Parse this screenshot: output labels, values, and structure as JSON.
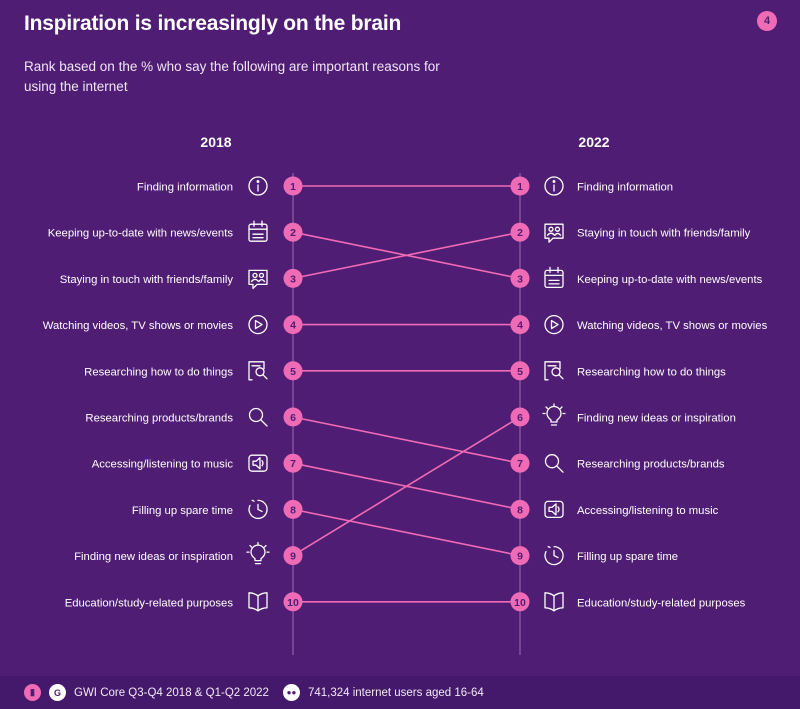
{
  "header": {
    "title": "Inspiration is increasingly on the brain",
    "subtitle": "Rank based on the % who say the following are important reasons for using the internet",
    "page_number": "4"
  },
  "footer": {
    "source": "GWI Core Q3-Q4 2018 & Q1-Q2 2022",
    "sample": "741,324 internet users aged 16-64",
    "chart_icon": "bar-chart-icon",
    "brand_icon": "gwi-logo-icon",
    "users_icon": "users-icon"
  },
  "colors": {
    "background": "#4f1d73",
    "accent": "#f06bb5",
    "axis_line": "#8d5aa9",
    "text": "#ffffff"
  },
  "chart_data": {
    "type": "slope",
    "title": "Inspiration is increasingly on the brain",
    "years": [
      "2018",
      "2022"
    ],
    "rank_labels": [
      "1",
      "2",
      "3",
      "4",
      "5",
      "6",
      "7",
      "8",
      "9",
      "10"
    ],
    "items": [
      {
        "label": "Finding information",
        "icon": "info-icon",
        "rank_2018": 1,
        "rank_2022": 1
      },
      {
        "label": "Keeping up-to-date with news/events",
        "icon": "calendar-icon",
        "rank_2018": 2,
        "rank_2022": 3
      },
      {
        "label": "Staying in touch with friends/family",
        "icon": "people-chat-icon",
        "rank_2018": 3,
        "rank_2022": 2
      },
      {
        "label": "Watching videos, TV shows or movies",
        "icon": "play-icon",
        "rank_2018": 4,
        "rank_2022": 4
      },
      {
        "label": "Researching how to do things",
        "icon": "search-doc-icon",
        "rank_2018": 5,
        "rank_2022": 5
      },
      {
        "label": "Researching products/brands",
        "icon": "magnifier-icon",
        "rank_2018": 6,
        "rank_2022": 7
      },
      {
        "label": "Accessing/listening to music",
        "icon": "speaker-icon",
        "rank_2018": 7,
        "rank_2022": 8
      },
      {
        "label": "Filling up spare time",
        "icon": "clock-icon",
        "rank_2018": 8,
        "rank_2022": 9
      },
      {
        "label": "Finding new ideas or inspiration",
        "icon": "lightbulb-icon",
        "rank_2018": 9,
        "rank_2022": 6
      },
      {
        "label": "Education/study-related purposes",
        "icon": "book-icon",
        "rank_2018": 10,
        "rank_2022": 10
      }
    ]
  }
}
